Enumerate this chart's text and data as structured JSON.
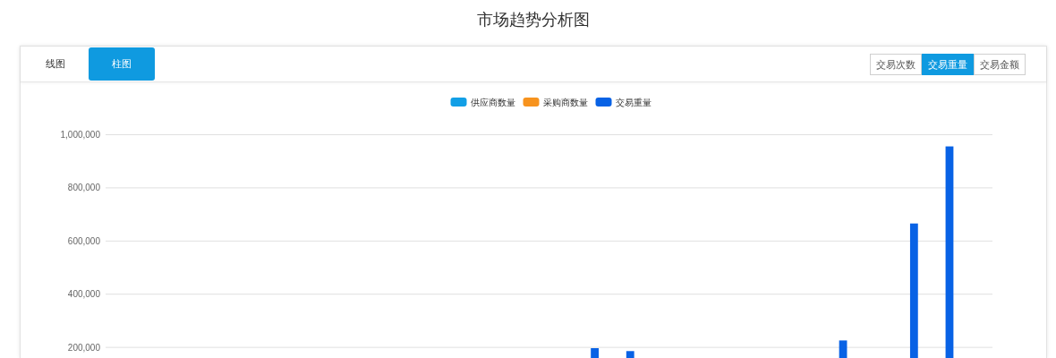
{
  "chart_data": {
    "type": "bar",
    "title": "市场趋势分析图",
    "annotations": [
      "线图",
      "柱图",
      "交易次数",
      "交易重量",
      "交易金额"
    ],
    "categories": [
      null,
      null,
      null,
      null,
      null,
      null,
      null,
      null,
      null,
      null,
      null,
      null,
      null,
      null,
      null,
      null,
      null,
      null,
      null,
      null,
      null,
      null,
      null,
      null,
      null
    ],
    "series": [
      {
        "name": "供应商数量",
        "color": "#129fe6",
        "values": [
          null,
          null,
          null,
          null,
          null,
          null,
          null,
          null,
          null,
          null,
          null,
          null,
          null,
          null,
          null,
          null,
          null,
          null,
          null,
          null,
          null,
          null,
          null,
          null,
          null
        ]
      },
      {
        "name": "采购商数量",
        "color": "#f7931e",
        "values": [
          null,
          null,
          null,
          null,
          null,
          null,
          null,
          null,
          null,
          null,
          null,
          null,
          null,
          null,
          null,
          null,
          null,
          null,
          null,
          null,
          null,
          null,
          null,
          null,
          null
        ]
      },
      {
        "name": "交易重量",
        "color": "#0862e5",
        "values": [
          null,
          null,
          null,
          null,
          null,
          null,
          null,
          null,
          null,
          null,
          null,
          null,
          null,
          197000,
          186000,
          null,
          null,
          null,
          null,
          null,
          226000,
          null,
          666000,
          956000,
          null
        ]
      }
    ],
    "ylim": [
      160000,
      1000000
    ],
    "yticks": [
      {
        "value": 200000,
        "label": "200,000"
      },
      {
        "value": 400000,
        "label": "400,000"
      },
      {
        "value": 600000,
        "label": "600,000"
      },
      {
        "value": 800000,
        "label": "800,000"
      },
      {
        "value": 1000000,
        "label": "1,000,000"
      }
    ],
    "grid": "y",
    "legend": "top",
    "tick_labels": "y"
  }
}
